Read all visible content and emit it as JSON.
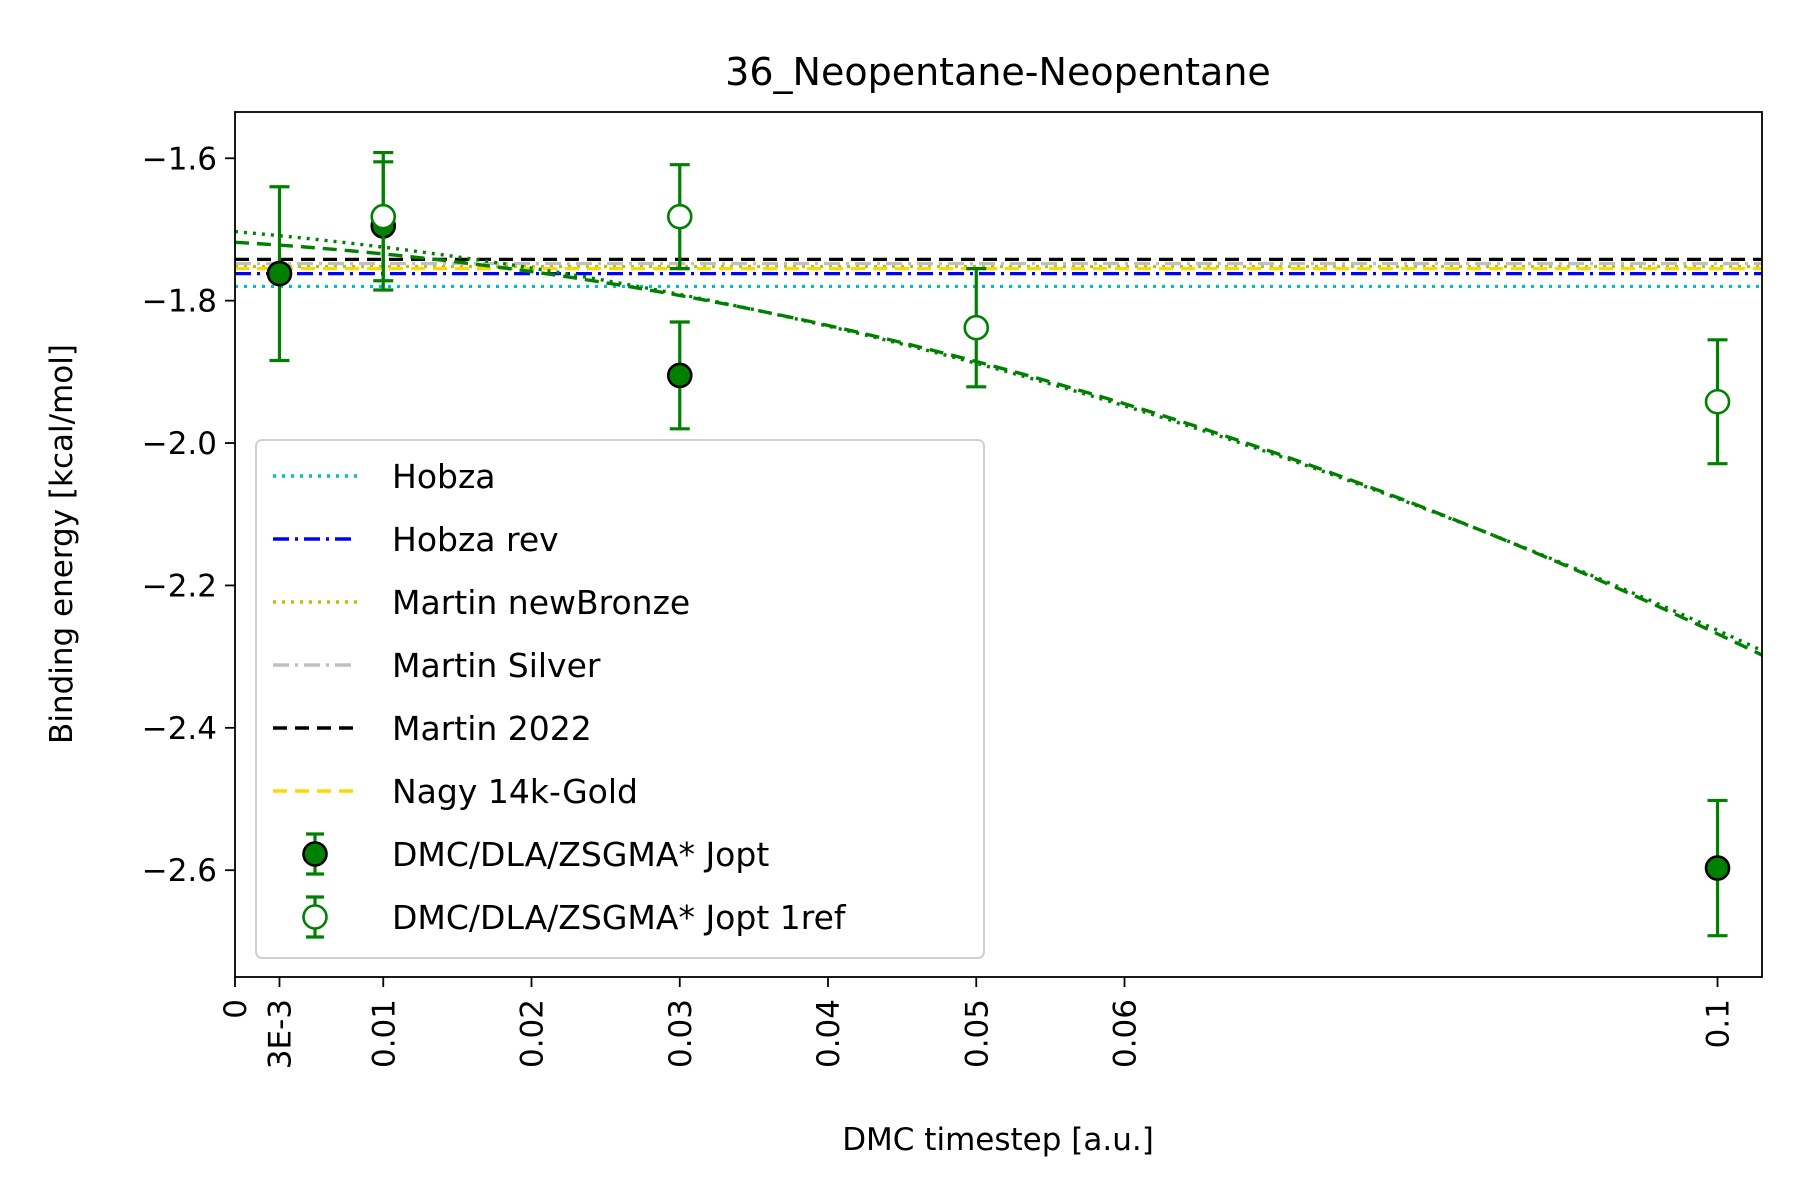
{
  "chart_data": {
    "type": "scatter",
    "title": "36_Neopentane-Neopentane",
    "xlabel": "DMC timestep [a.u.]",
    "ylabel": "Binding energy [kcal/mol]",
    "xlim": [
      0,
      0.103
    ],
    "ylim": [
      -2.75,
      -1.535
    ],
    "x_ticks": [
      {
        "value": 0,
        "label": "0"
      },
      {
        "value": 0.003,
        "label": "3E-3"
      },
      {
        "value": 0.01,
        "label": "0.01"
      },
      {
        "value": 0.02,
        "label": "0.02"
      },
      {
        "value": 0.03,
        "label": "0.03"
      },
      {
        "value": 0.04,
        "label": "0.04"
      },
      {
        "value": 0.05,
        "label": "0.05"
      },
      {
        "value": 0.06,
        "label": "0.06"
      },
      {
        "value": 0.1,
        "label": "0.1"
      }
    ],
    "y_ticks": [
      {
        "value": -1.6,
        "label": "−1.6"
      },
      {
        "value": -1.8,
        "label": "−1.8"
      },
      {
        "value": -2.0,
        "label": "−2.0"
      },
      {
        "value": -2.2,
        "label": "−2.2"
      },
      {
        "value": -2.4,
        "label": "−2.4"
      },
      {
        "value": -2.6,
        "label": "−2.6"
      }
    ],
    "grid": false,
    "legend_position": "lower-left",
    "reference_lines": [
      {
        "name": "Hobza",
        "value": -1.78,
        "color": "#00bfbf",
        "style": "dotted"
      },
      {
        "name": "Hobza rev",
        "value": -1.762,
        "color": "#0000ff",
        "style": "dashdot"
      },
      {
        "name": "Martin newBronze",
        "value": -1.752,
        "color": "#bfbf00",
        "style": "dotted"
      },
      {
        "name": "Martin Silver",
        "value": -1.748,
        "color": "#c0c0c0",
        "style": "dashdot"
      },
      {
        "name": "Martin 2022",
        "value": -1.742,
        "color": "#000000",
        "style": "dashed"
      },
      {
        "name": "Nagy 14k-Gold",
        "value": -1.755,
        "color": "#ffd700",
        "style": "dashed"
      }
    ],
    "series": [
      {
        "name": "DMC/DLA/ZSGMA* Jopt",
        "marker": "filled-circle",
        "color": "#008000",
        "points": [
          {
            "x": 0.003,
            "y": -1.762,
            "err": 0.122
          },
          {
            "x": 0.01,
            "y": -1.695,
            "err": 0.09
          },
          {
            "x": 0.03,
            "y": -1.905,
            "err": 0.075
          },
          {
            "x": 0.1,
            "y": -2.597,
            "err": 0.095
          }
        ],
        "fit": {
          "style": "dashed",
          "y0": -1.718,
          "a": -1.2,
          "b": -43.0
        }
      },
      {
        "name": "DMC/DLA/ZSGMA* Jopt 1ref",
        "marker": "open-circle",
        "color": "#008000",
        "points": [
          {
            "x": 0.01,
            "y": -1.682,
            "err": 0.09
          },
          {
            "x": 0.03,
            "y": -1.682,
            "err": 0.073
          },
          {
            "x": 0.05,
            "y": -1.838,
            "err": 0.083
          },
          {
            "x": 0.1,
            "y": -1.942,
            "err": 0.087
          }
        ],
        "fit": {
          "style": "dotted",
          "y0": -1.703,
          "a": -1.8,
          "b": -38.0
        }
      }
    ]
  }
}
